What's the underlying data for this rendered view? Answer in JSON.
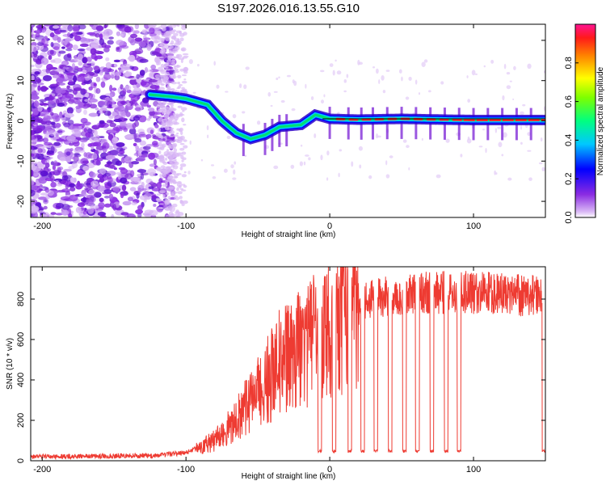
{
  "figure_title": "S197.2026.016.13.55.G10",
  "chart_data": [
    {
      "type": "heatmap",
      "name": "spectrogram",
      "xlabel": "Height of straight line (km)",
      "ylabel": "Frequency (Hz)",
      "xlim": [
        -208,
        150
      ],
      "ylim": [
        -24,
        24
      ],
      "xticks": [
        -200,
        -100,
        0,
        100
      ],
      "yticks": [
        -20,
        -10,
        0,
        10,
        20
      ],
      "colorbar": {
        "label": "Normalized spectral amplitude",
        "range": [
          0,
          1
        ],
        "ticks": [
          0.0,
          0.2,
          0.4,
          0.6,
          0.8
        ]
      },
      "ridge": {
        "description": "dominant frequency track",
        "points": [
          {
            "x": -125,
            "y": 6.5
          },
          {
            "x": -110,
            "y": 6.0
          },
          {
            "x": -100,
            "y": 5.5
          },
          {
            "x": -85,
            "y": 4.0
          },
          {
            "x": -75,
            "y": 0.0
          },
          {
            "x": -65,
            "y": -3.0
          },
          {
            "x": -55,
            "y": -4.5
          },
          {
            "x": -45,
            "y": -3.5
          },
          {
            "x": -35,
            "y": -1.5
          },
          {
            "x": -20,
            "y": -1.0
          },
          {
            "x": -10,
            "y": 1.5
          },
          {
            "x": 0,
            "y": 0.5
          },
          {
            "x": 20,
            "y": 0.3
          },
          {
            "x": 50,
            "y": 0.5
          },
          {
            "x": 80,
            "y": 0.3
          },
          {
            "x": 100,
            "y": 0.2
          },
          {
            "x": 150,
            "y": 0.2
          }
        ]
      }
    },
    {
      "type": "line",
      "name": "snr",
      "xlabel": "Height of straight line (km)",
      "ylabel": "SNR (10 * v/v)",
      "xlim": [
        -208,
        150
      ],
      "ylim": [
        0,
        960
      ],
      "xticks": [
        -200,
        -100,
        0,
        100
      ],
      "yticks": [
        0,
        200,
        400,
        600,
        800
      ],
      "color": "#ee3b32",
      "envelope": [
        {
          "x": -208,
          "y": 20
        },
        {
          "x": -120,
          "y": 25
        },
        {
          "x": -100,
          "y": 40
        },
        {
          "x": -80,
          "y": 100
        },
        {
          "x": -65,
          "y": 200
        },
        {
          "x": -50,
          "y": 330
        },
        {
          "x": -35,
          "y": 480
        },
        {
          "x": -20,
          "y": 560
        },
        {
          "x": -5,
          "y": 620
        },
        {
          "x": 10,
          "y": 700
        },
        {
          "x": 25,
          "y": 790
        },
        {
          "x": 40,
          "y": 820
        },
        {
          "x": 60,
          "y": 830
        },
        {
          "x": 90,
          "y": 835
        },
        {
          "x": 120,
          "y": 825
        },
        {
          "x": 150,
          "y": 815
        }
      ],
      "dropouts_x": [
        -7,
        3,
        14,
        23,
        32,
        42,
        52,
        61,
        71,
        81,
        90,
        149
      ],
      "dropout_level": 40
    }
  ]
}
